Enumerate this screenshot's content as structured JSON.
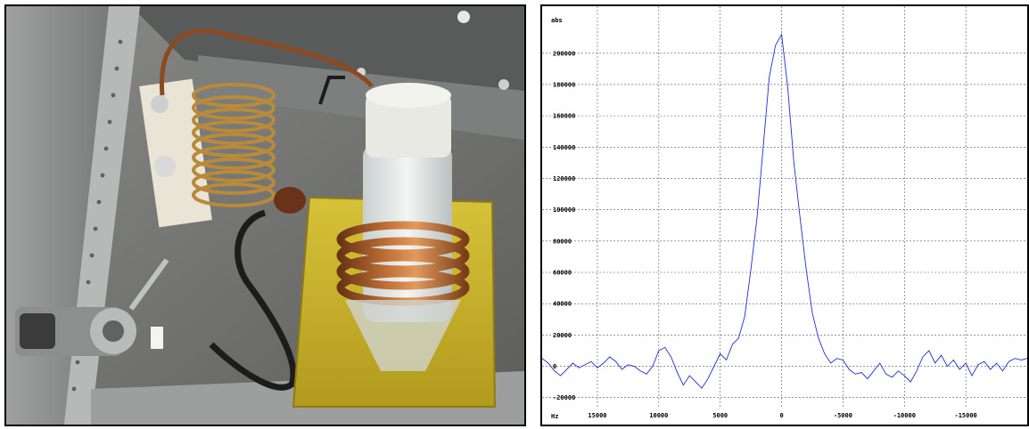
{
  "photo": {
    "subject": "NMR probe circuit: variable capacitor, small capacitor, copper coil around sample vial in metal enclosure with BNC connector"
  },
  "chart_data": {
    "type": "line",
    "title": "",
    "xlabel": "Hz",
    "ylabel": "abs",
    "x_reversed": true,
    "xlim": [
      19500,
      -20000
    ],
    "ylim": [
      -27000,
      230000
    ],
    "x_ticks": [
      15000,
      10000,
      5000,
      0,
      -5000,
      -10000,
      -15000
    ],
    "x_tick_labels": [
      "15000",
      "10000",
      "5000",
      "0",
      "-5000",
      "-10000",
      "-15000"
    ],
    "y_ticks": [
      200000,
      180000,
      160000,
      140000,
      120000,
      100000,
      80000,
      60000,
      40000,
      20000,
      0,
      -20000
    ],
    "y_tick_labels": [
      "200000",
      "180000",
      "160000",
      "140000",
      "120000",
      "100000",
      "80000",
      "60000",
      "40000",
      "20000",
      "0",
      "-20000"
    ],
    "grid": true,
    "line_color": "#1f2fd0",
    "series": [
      {
        "x": [
          19500,
          19000,
          18500,
          18000,
          17500,
          17000,
          16500,
          16000,
          15500,
          15000,
          14500,
          14000,
          13500,
          13000,
          12500,
          12000,
          11500,
          11000,
          10500,
          10000,
          9500,
          9000,
          8500,
          8000,
          7500,
          7000,
          6500,
          6000,
          5500,
          5000,
          4500,
          4000,
          3500,
          3000,
          2500,
          2000,
          1500,
          1000,
          500,
          0,
          -500,
          -1000,
          -1500,
          -2000,
          -2500,
          -3000,
          -3500,
          -4000,
          -4500,
          -5000,
          -5500,
          -6000,
          -6500,
          -7000,
          -7500,
          -8000,
          -8500,
          -9000,
          -9500,
          -10000,
          -10500,
          -11000,
          -11500,
          -12000,
          -12500,
          -13000,
          -13500,
          -14000,
          -14500,
          -15000,
          -15500,
          -16000,
          -16500,
          -17000,
          -17500,
          -18000,
          -18500,
          -19000,
          -19500,
          -20000
        ],
        "values": [
          5000,
          2000,
          -3000,
          -6000,
          -2000,
          2000,
          -1000,
          1000,
          3000,
          -1000,
          2000,
          6000,
          3000,
          -2000,
          1000,
          0,
          -3000,
          -5000,
          0,
          10000,
          12000,
          6000,
          -4000,
          -12000,
          -6000,
          -10000,
          -14000,
          -8000,
          0,
          8000,
          4000,
          14000,
          18000,
          32000,
          62000,
          95000,
          140000,
          185000,
          205000,
          212000,
          178000,
          130000,
          95000,
          62000,
          34000,
          18000,
          8000,
          2000,
          5000,
          4000,
          -2000,
          -5000,
          -4000,
          -8000,
          -3000,
          2000,
          -5000,
          -7000,
          -3000,
          -6000,
          -10000,
          -3000,
          6000,
          10000,
          2000,
          7000,
          0,
          4000,
          -2000,
          2000,
          -6000,
          1000,
          3000,
          -2000,
          2000,
          -3000,
          3000,
          5000,
          4000,
          5000
        ]
      }
    ]
  }
}
